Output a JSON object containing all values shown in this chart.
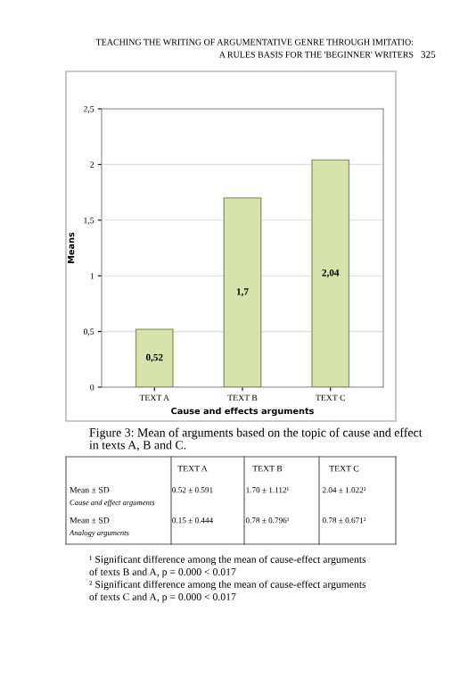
{
  "chart_data": {
    "type": "bar",
    "categories": [
      "TEXT A",
      "TEXT B",
      "TEXT C"
    ],
    "values": [
      0.52,
      1.7,
      2.04
    ],
    "value_labels": [
      "0,52",
      "1,7",
      "2,04"
    ],
    "color": "#d7e3aa",
    "xlabel": "Cause and effects arguments",
    "ylabel": "Means",
    "ylim": [
      0,
      2.5
    ],
    "yticks": [
      {
        "value": 0,
        "label": "0"
      },
      {
        "value": 0.5,
        "label": "0,5"
      },
      {
        "value": 1,
        "label": "1"
      },
      {
        "value": 1.5,
        "label": "1,5"
      },
      {
        "value": 2,
        "label": "2"
      },
      {
        "value": 2.5,
        "label": "2,5"
      }
    ],
    "grid": "y",
    "annotations": [
      "TEACHING THE WRITING OF ARGUMENTATIVE GENRE THROUGH IMITATIO:",
      "A RULES BASIS FOR THE 'BEGINNER' WRITERS",
      "325",
      "Figure 3: Mean of arguments based on the topic of cause and effect",
      "in texts A, B and C.",
      "TEXT A",
      "TEXT B",
      "TEXT C",
      "Mean ± SD",
      "0.52 ± 0.591",
      "1.70 ± 1.112¹",
      "2.04 ± 1.022²",
      "Cause and effect arguments",
      "Mean ± SD",
      "0.15 ± 0.444",
      "0.78 ± 0.796¹",
      "0.78 ± 0.671²",
      "Analogy arguments",
      "¹ Significant difference among the mean of cause-effect arguments",
      "of texts B and A, p = 0.000 < 0.017",
      "² Significant difference among the mean of cause-effect arguments",
      "of texts C and A, p = 0.000 < 0.017"
    ]
  }
}
